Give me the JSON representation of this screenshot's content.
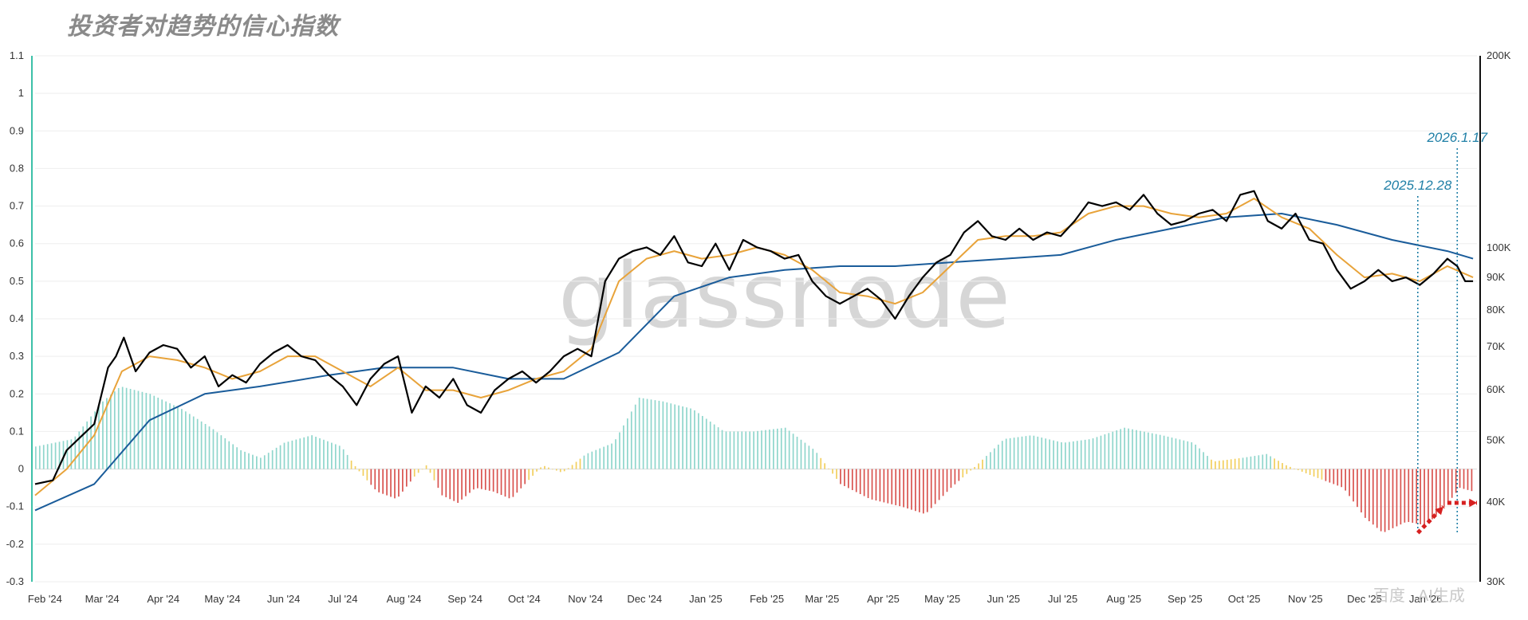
{
  "chart_data": {
    "title": "投资者对趋势的信心指数",
    "type": "line",
    "y_left_ticks": [
      "1.1",
      "1",
      "0.9",
      "0.8",
      "0.7",
      "0.6",
      "0.5",
      "0.4",
      "0.3",
      "0.2",
      "0.1",
      "0",
      "-0.1",
      "-0.2",
      "-0.3"
    ],
    "ylim_left": [
      -0.3,
      1.1
    ],
    "y_right_ticks": [
      "200K",
      "100K",
      "90K",
      "80K",
      "70K",
      "60K",
      "50K",
      "40K",
      "30K"
    ],
    "y_right_values": [
      200000,
      100000,
      90000,
      80000,
      70000,
      60000,
      50000,
      40000,
      30000
    ],
    "y_right_scale": "log",
    "ylim_right": [
      30000,
      200000
    ],
    "x_ticks": [
      "Feb '24",
      "Mar '24",
      "Apr '24",
      "May '24",
      "Jun '24",
      "Jul '24",
      "Aug '24",
      "Sep '24",
      "Oct '24",
      "Nov '24",
      "Dec '24",
      "Jan '25",
      "Feb '25",
      "Mar '25",
      "Apr '25",
      "May '25",
      "Jun '25",
      "Jul '25",
      "Aug '25",
      "Sep '25",
      "Oct '25",
      "Nov '25",
      "Dec '25",
      "Jan '26"
    ],
    "x_dates": [
      "2024-02-01",
      "2024-03-01",
      "2024-04-01",
      "2024-05-01",
      "2024-06-01",
      "2024-07-01",
      "2024-08-01",
      "2024-09-01",
      "2024-10-01",
      "2024-11-01",
      "2024-12-01",
      "2025-01-01",
      "2025-02-01",
      "2025-03-01",
      "2025-04-01",
      "2025-05-01",
      "2025-06-01",
      "2025-07-01",
      "2025-08-01",
      "2025-09-01",
      "2025-10-01",
      "2025-11-01",
      "2025-12-01",
      "2026-01-01"
    ],
    "xlim": [
      "2024-01-27",
      "2026-01-27"
    ],
    "colors": {
      "price": "#000000",
      "short_ma": "#e8a33a",
      "long_ma": "#1a5c9a",
      "hist_positive": "#8fd6cc",
      "hist_yellow": "#f2cf5e",
      "hist_negative": "#d9534f",
      "annotation": "#1f7fa6",
      "arrow": "#d62020",
      "left_axis": "#3cc0a8"
    },
    "price_line": [
      [
        "2024-01-27",
        -0.04
      ],
      [
        "2024-02-05",
        -0.03
      ],
      [
        "2024-02-12",
        0.05
      ],
      [
        "2024-02-20",
        0.09
      ],
      [
        "2024-02-26",
        0.12
      ],
      [
        "2024-03-04",
        0.27
      ],
      [
        "2024-03-08",
        0.3
      ],
      [
        "2024-03-12",
        0.35
      ],
      [
        "2024-03-18",
        0.26
      ],
      [
        "2024-03-25",
        0.31
      ],
      [
        "2024-04-01",
        0.33
      ],
      [
        "2024-04-08",
        0.32
      ],
      [
        "2024-04-15",
        0.27
      ],
      [
        "2024-04-22",
        0.3
      ],
      [
        "2024-04-29",
        0.22
      ],
      [
        "2024-05-06",
        0.25
      ],
      [
        "2024-05-13",
        0.23
      ],
      [
        "2024-05-20",
        0.28
      ],
      [
        "2024-05-27",
        0.31
      ],
      [
        "2024-06-03",
        0.33
      ],
      [
        "2024-06-10",
        0.3
      ],
      [
        "2024-06-17",
        0.29
      ],
      [
        "2024-06-24",
        0.25
      ],
      [
        "2024-07-01",
        0.22
      ],
      [
        "2024-07-08",
        0.17
      ],
      [
        "2024-07-15",
        0.24
      ],
      [
        "2024-07-22",
        0.28
      ],
      [
        "2024-07-29",
        0.3
      ],
      [
        "2024-08-05",
        0.15
      ],
      [
        "2024-08-12",
        0.22
      ],
      [
        "2024-08-19",
        0.19
      ],
      [
        "2024-08-26",
        0.24
      ],
      [
        "2024-09-02",
        0.17
      ],
      [
        "2024-09-09",
        0.15
      ],
      [
        "2024-09-16",
        0.21
      ],
      [
        "2024-09-23",
        0.24
      ],
      [
        "2024-09-30",
        0.26
      ],
      [
        "2024-10-07",
        0.23
      ],
      [
        "2024-10-14",
        0.26
      ],
      [
        "2024-10-21",
        0.3
      ],
      [
        "2024-10-28",
        0.32
      ],
      [
        "2024-11-04",
        0.3
      ],
      [
        "2024-11-11",
        0.5
      ],
      [
        "2024-11-18",
        0.56
      ],
      [
        "2024-11-25",
        0.58
      ],
      [
        "2024-12-02",
        0.59
      ],
      [
        "2024-12-09",
        0.57
      ],
      [
        "2024-12-16",
        0.62
      ],
      [
        "2024-12-23",
        0.55
      ],
      [
        "2024-12-30",
        0.54
      ],
      [
        "2025-01-06",
        0.6
      ],
      [
        "2025-01-13",
        0.53
      ],
      [
        "2025-01-20",
        0.61
      ],
      [
        "2025-01-27",
        0.59
      ],
      [
        "2025-02-03",
        0.58
      ],
      [
        "2025-02-10",
        0.56
      ],
      [
        "2025-02-17",
        0.57
      ],
      [
        "2025-02-24",
        0.5
      ],
      [
        "2025-03-03",
        0.46
      ],
      [
        "2025-03-10",
        0.44
      ],
      [
        "2025-03-17",
        0.46
      ],
      [
        "2025-03-24",
        0.48
      ],
      [
        "2025-03-31",
        0.45
      ],
      [
        "2025-04-07",
        0.4
      ],
      [
        "2025-04-14",
        0.46
      ],
      [
        "2025-04-21",
        0.51
      ],
      [
        "2025-04-28",
        0.55
      ],
      [
        "2025-05-05",
        0.57
      ],
      [
        "2025-05-12",
        0.63
      ],
      [
        "2025-05-19",
        0.66
      ],
      [
        "2025-05-26",
        0.62
      ],
      [
        "2025-06-02",
        0.61
      ],
      [
        "2025-06-09",
        0.64
      ],
      [
        "2025-06-16",
        0.61
      ],
      [
        "2025-06-23",
        0.63
      ],
      [
        "2025-06-30",
        0.62
      ],
      [
        "2025-07-07",
        0.66
      ],
      [
        "2025-07-14",
        0.71
      ],
      [
        "2025-07-21",
        0.7
      ],
      [
        "2025-07-28",
        0.71
      ],
      [
        "2025-08-04",
        0.69
      ],
      [
        "2025-08-11",
        0.73
      ],
      [
        "2025-08-18",
        0.68
      ],
      [
        "2025-08-25",
        0.65
      ],
      [
        "2025-09-01",
        0.66
      ],
      [
        "2025-09-08",
        0.68
      ],
      [
        "2025-09-15",
        0.69
      ],
      [
        "2025-09-22",
        0.66
      ],
      [
        "2025-09-29",
        0.73
      ],
      [
        "2025-10-06",
        0.74
      ],
      [
        "2025-10-13",
        0.66
      ],
      [
        "2025-10-20",
        0.64
      ],
      [
        "2025-10-27",
        0.68
      ],
      [
        "2025-11-03",
        0.61
      ],
      [
        "2025-11-10",
        0.6
      ],
      [
        "2025-11-17",
        0.53
      ],
      [
        "2025-11-24",
        0.48
      ],
      [
        "2025-12-01",
        0.5
      ],
      [
        "2025-12-08",
        0.53
      ],
      [
        "2025-12-15",
        0.5
      ],
      [
        "2025-12-22",
        0.51
      ],
      [
        "2025-12-29",
        0.49
      ],
      [
        "2026-01-05",
        0.52
      ],
      [
        "2026-01-12",
        0.56
      ],
      [
        "2026-01-17",
        0.54
      ],
      [
        "2026-01-21",
        0.5
      ],
      [
        "2026-01-25",
        0.5
      ]
    ],
    "short_ma": [
      [
        "2024-01-27",
        -0.07
      ],
      [
        "2024-02-12",
        0.0
      ],
      [
        "2024-02-26",
        0.09
      ],
      [
        "2024-03-11",
        0.26
      ],
      [
        "2024-03-25",
        0.3
      ],
      [
        "2024-04-08",
        0.29
      ],
      [
        "2024-04-22",
        0.27
      ],
      [
        "2024-05-06",
        0.24
      ],
      [
        "2024-05-20",
        0.26
      ],
      [
        "2024-06-03",
        0.3
      ],
      [
        "2024-06-17",
        0.3
      ],
      [
        "2024-07-01",
        0.26
      ],
      [
        "2024-07-15",
        0.22
      ],
      [
        "2024-07-29",
        0.27
      ],
      [
        "2024-08-12",
        0.21
      ],
      [
        "2024-08-26",
        0.21
      ],
      [
        "2024-09-09",
        0.19
      ],
      [
        "2024-09-23",
        0.21
      ],
      [
        "2024-10-07",
        0.24
      ],
      [
        "2024-10-21",
        0.26
      ],
      [
        "2024-11-04",
        0.32
      ],
      [
        "2024-11-18",
        0.5
      ],
      [
        "2024-12-02",
        0.56
      ],
      [
        "2024-12-16",
        0.58
      ],
      [
        "2024-12-30",
        0.56
      ],
      [
        "2025-01-13",
        0.57
      ],
      [
        "2025-01-27",
        0.59
      ],
      [
        "2025-02-10",
        0.57
      ],
      [
        "2025-02-24",
        0.53
      ],
      [
        "2025-03-10",
        0.47
      ],
      [
        "2025-03-24",
        0.46
      ],
      [
        "2025-04-07",
        0.44
      ],
      [
        "2025-04-21",
        0.47
      ],
      [
        "2025-05-05",
        0.54
      ],
      [
        "2025-05-19",
        0.61
      ],
      [
        "2025-06-02",
        0.62
      ],
      [
        "2025-06-16",
        0.62
      ],
      [
        "2025-06-30",
        0.63
      ],
      [
        "2025-07-14",
        0.68
      ],
      [
        "2025-07-28",
        0.7
      ],
      [
        "2025-08-11",
        0.7
      ],
      [
        "2025-08-25",
        0.68
      ],
      [
        "2025-09-08",
        0.67
      ],
      [
        "2025-09-22",
        0.68
      ],
      [
        "2025-10-06",
        0.72
      ],
      [
        "2025-10-20",
        0.67
      ],
      [
        "2025-11-03",
        0.64
      ],
      [
        "2025-11-17",
        0.57
      ],
      [
        "2025-12-01",
        0.51
      ],
      [
        "2025-12-15",
        0.52
      ],
      [
        "2025-12-29",
        0.5
      ],
      [
        "2026-01-12",
        0.54
      ],
      [
        "2026-01-25",
        0.51
      ]
    ],
    "long_ma": [
      [
        "2024-01-27",
        -0.11
      ],
      [
        "2024-02-26",
        -0.04
      ],
      [
        "2024-03-25",
        0.13
      ],
      [
        "2024-04-22",
        0.2
      ],
      [
        "2024-05-20",
        0.22
      ],
      [
        "2024-06-24",
        0.25
      ],
      [
        "2024-07-22",
        0.27
      ],
      [
        "2024-08-26",
        0.27
      ],
      [
        "2024-09-23",
        0.24
      ],
      [
        "2024-10-21",
        0.24
      ],
      [
        "2024-11-18",
        0.31
      ],
      [
        "2024-12-16",
        0.46
      ],
      [
        "2025-01-13",
        0.51
      ],
      [
        "2025-02-10",
        0.53
      ],
      [
        "2025-03-10",
        0.54
      ],
      [
        "2025-04-07",
        0.54
      ],
      [
        "2025-05-05",
        0.55
      ],
      [
        "2025-06-02",
        0.56
      ],
      [
        "2025-06-30",
        0.57
      ],
      [
        "2025-07-28",
        0.61
      ],
      [
        "2025-08-25",
        0.64
      ],
      [
        "2025-09-22",
        0.67
      ],
      [
        "2025-10-20",
        0.68
      ],
      [
        "2025-11-17",
        0.65
      ],
      [
        "2025-12-15",
        0.61
      ],
      [
        "2026-01-12",
        0.58
      ],
      [
        "2026-01-25",
        0.56
      ]
    ],
    "histogram": [
      [
        "2024-01-27",
        0.06
      ],
      [
        "2024-02-15",
        0.08
      ],
      [
        "2024-03-01",
        0.18
      ],
      [
        "2024-03-10",
        0.22
      ],
      [
        "2024-03-25",
        0.2
      ],
      [
        "2024-04-10",
        0.16
      ],
      [
        "2024-04-25",
        0.11
      ],
      [
        "2024-05-10",
        0.05
      ],
      [
        "2024-05-20",
        0.03
      ],
      [
        "2024-06-01",
        0.07
      ],
      [
        "2024-06-15",
        0.09
      ],
      [
        "2024-06-30",
        0.06
      ],
      [
        "2024-07-08",
        0.0
      ],
      [
        "2024-07-18",
        -0.06
      ],
      [
        "2024-07-28",
        -0.08
      ],
      [
        "2024-08-06",
        -0.02
      ],
      [
        "2024-08-12",
        0.01
      ],
      [
        "2024-08-20",
        -0.07
      ],
      [
        "2024-08-28",
        -0.09
      ],
      [
        "2024-09-06",
        -0.05
      ],
      [
        "2024-09-15",
        -0.06
      ],
      [
        "2024-09-24",
        -0.08
      ],
      [
        "2024-10-01",
        -0.04
      ],
      [
        "2024-10-10",
        0.01
      ],
      [
        "2024-10-20",
        -0.01
      ],
      [
        "2024-11-01",
        0.04
      ],
      [
        "2024-11-15",
        0.07
      ],
      [
        "2024-11-28",
        0.19
      ],
      [
        "2024-12-10",
        0.18
      ],
      [
        "2024-12-25",
        0.16
      ],
      [
        "2025-01-10",
        0.1
      ],
      [
        "2025-01-25",
        0.1
      ],
      [
        "2025-02-10",
        0.11
      ],
      [
        "2025-02-25",
        0.05
      ],
      [
        "2025-03-10",
        -0.04
      ],
      [
        "2025-03-25",
        -0.08
      ],
      [
        "2025-04-10",
        -0.1
      ],
      [
        "2025-04-22",
        -0.12
      ],
      [
        "2025-05-05",
        -0.05
      ],
      [
        "2025-05-18",
        0.01
      ],
      [
        "2025-06-01",
        0.08
      ],
      [
        "2025-06-15",
        0.09
      ],
      [
        "2025-07-01",
        0.07
      ],
      [
        "2025-07-15",
        0.08
      ],
      [
        "2025-08-01",
        0.11
      ],
      [
        "2025-08-20",
        0.09
      ],
      [
        "2025-09-05",
        0.07
      ],
      [
        "2025-09-15",
        0.02
      ],
      [
        "2025-09-30",
        0.03
      ],
      [
        "2025-10-12",
        0.04
      ],
      [
        "2025-10-22",
        0.01
      ],
      [
        "2025-11-05",
        -0.02
      ],
      [
        "2025-11-20",
        -0.05
      ],
      [
        "2025-12-01",
        -0.13
      ],
      [
        "2025-12-10",
        -0.17
      ],
      [
        "2025-12-22",
        -0.14
      ],
      [
        "2026-01-01",
        -0.15
      ],
      [
        "2026-01-12",
        -0.09
      ],
      [
        "2026-01-18",
        -0.05
      ],
      [
        "2026-01-25",
        -0.06
      ]
    ],
    "annotations": [
      {
        "label": "2025.12.28",
        "date": "2025-12-28"
      },
      {
        "label": "2026.1.17",
        "date": "2026-01-17"
      }
    ],
    "arrows": [
      {
        "from": [
          "2025-12-28",
          -0.17
        ],
        "to": [
          "2026-01-10",
          -0.1
        ]
      },
      {
        "from": [
          "2026-01-12",
          -0.09
        ],
        "to": [
          "2026-01-27",
          -0.09
        ]
      }
    ],
    "watermark": "glassnode",
    "corner_marks": {
      "left": "百度",
      "right": "AI生成"
    }
  }
}
